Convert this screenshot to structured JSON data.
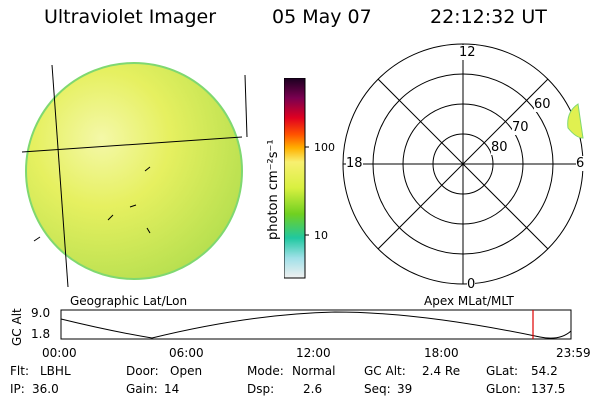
{
  "header": {
    "instrument": "Ultraviolet Imager",
    "date": "05 May 07",
    "time": "22:12:32 UT"
  },
  "colorbar": {
    "unit_label": "photon cm⁻²s⁻¹",
    "ticks": [
      "100",
      "10"
    ]
  },
  "geo_panel": {
    "label": "Geographic Lat/Lon"
  },
  "polar_panel": {
    "label": "Apex MLat/MLT",
    "mlt_labels": {
      "top": "12",
      "right": "6",
      "bottom": "0",
      "left": "18"
    },
    "lat_labels": [
      "60",
      "70",
      "80"
    ]
  },
  "altitude_plot": {
    "ylabel": "GC Alt",
    "yticks": [
      "9.0",
      "1.8"
    ],
    "xticks": [
      "00:00",
      "06:00",
      "12:00",
      "18:00",
      "23:59"
    ],
    "marker_color": "#e00000"
  },
  "status": {
    "row1": [
      {
        "key": "Flt:",
        "value": "LBHL"
      },
      {
        "key": "Door:",
        "value": "Open"
      },
      {
        "key": "Mode:",
        "value": "Normal"
      },
      {
        "key": "GC Alt:",
        "value": "2.4 Re"
      },
      {
        "key": "GLat:",
        "value": "54.2"
      }
    ],
    "row2": [
      {
        "key": "IP:",
        "value": "36.0"
      },
      {
        "key": "Gain:",
        "value": "14"
      },
      {
        "key": "Dsp:",
        "value": "2.6"
      },
      {
        "key": "Seq:",
        "value": "39"
      },
      {
        "key": "GLon:",
        "value": "137.5"
      }
    ]
  }
}
